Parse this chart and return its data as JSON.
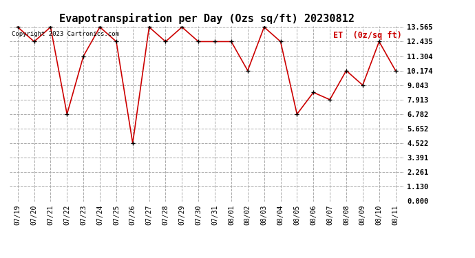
{
  "title": "Evapotranspiration per Day (Ozs sq/ft) 20230812",
  "legend_label": "ET  (0z/sq ft)",
  "copyright": "Copyright 2023 Cartronics.com",
  "dates": [
    "07/19",
    "07/20",
    "07/21",
    "07/22",
    "07/23",
    "07/24",
    "07/25",
    "07/26",
    "07/27",
    "07/28",
    "07/29",
    "07/30",
    "07/31",
    "08/01",
    "08/02",
    "08/03",
    "08/04",
    "08/05",
    "08/06",
    "08/07",
    "08/08",
    "08/09",
    "08/10",
    "08/11"
  ],
  "values": [
    13.565,
    12.435,
    13.565,
    6.782,
    11.304,
    13.565,
    12.435,
    4.522,
    13.565,
    12.435,
    13.565,
    12.435,
    12.435,
    12.435,
    10.174,
    13.565,
    12.435,
    6.782,
    8.478,
    7.913,
    10.174,
    9.043,
    12.435,
    10.174
  ],
  "yticks": [
    0.0,
    1.13,
    2.261,
    3.391,
    4.522,
    5.652,
    6.782,
    7.913,
    9.043,
    10.174,
    11.304,
    12.435,
    13.565
  ],
  "ymin": 0.0,
  "ymax": 13.565,
  "line_color": "#cc0000",
  "marker_color": "#000000",
  "grid_color": "#aaaaaa",
  "background_color": "#ffffff",
  "title_fontsize": 11,
  "legend_color": "#cc0000",
  "copyright_color": "#000000",
  "copyright_fontsize": 6.5
}
